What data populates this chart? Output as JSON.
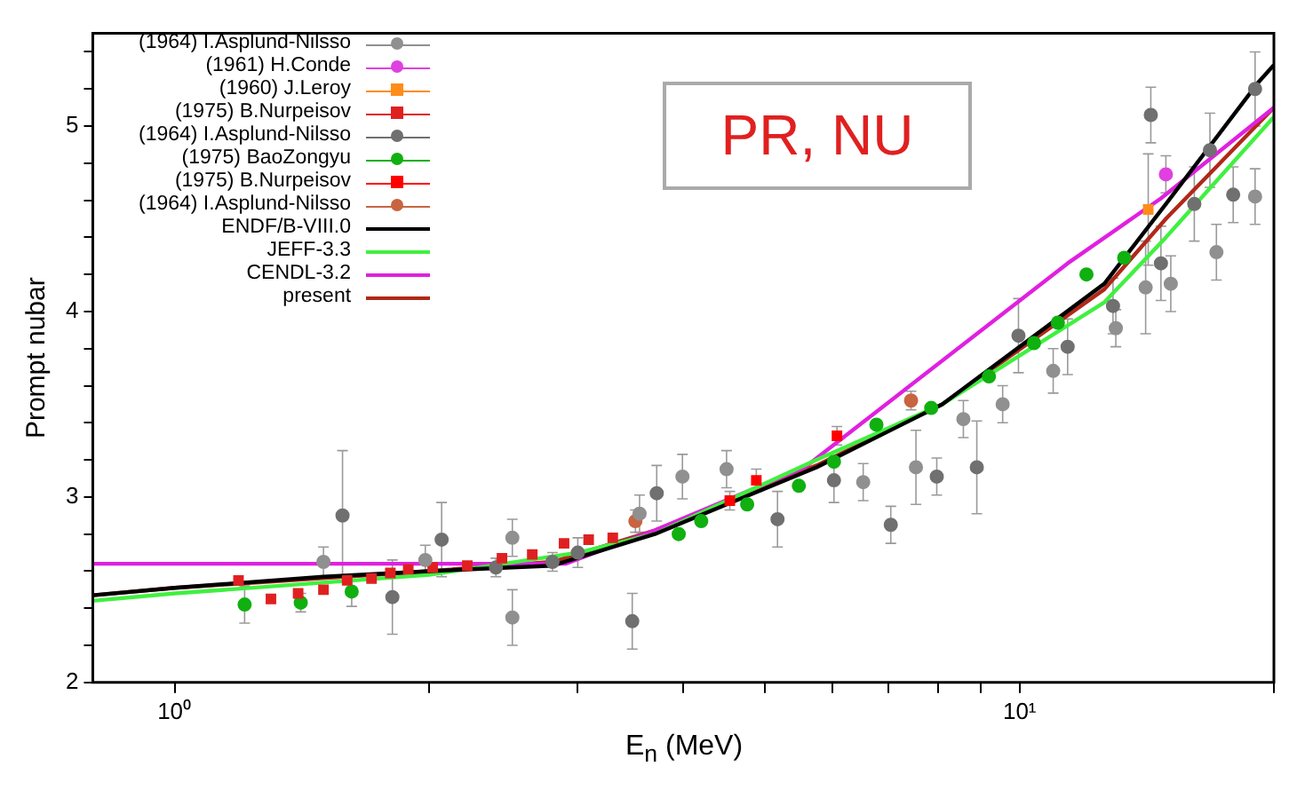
{
  "chart_data": {
    "type": "scatter",
    "xlabel": "E$_{n}$ (MeV)",
    "ylabel": "Prompt nubar",
    "log": "x",
    "legend": "top left",
    "grid": false,
    "annotations": [
      "PR, NU"
    ],
    "xlim": [
      0.8,
      20
    ],
    "ylim": [
      2,
      5.5
    ],
    "xticks": [
      {
        "value": 1,
        "label": "10⁰"
      },
      {
        "value": 2,
        "label": null
      },
      {
        "value": 3,
        "label": null
      },
      {
        "value": 4,
        "label": null
      },
      {
        "value": 5,
        "label": null
      },
      {
        "value": 6,
        "label": null
      },
      {
        "value": 7,
        "label": null
      },
      {
        "value": 8,
        "label": null
      },
      {
        "value": 9,
        "label": null
      },
      {
        "value": 10,
        "label": "10¹"
      },
      {
        "value": 20,
        "label": null
      }
    ],
    "yticks": [
      2,
      {
        "value": 2.2,
        "label": null
      },
      {
        "value": 2.4,
        "label": null
      },
      {
        "value": 2.6,
        "label": null
      },
      {
        "value": 2.8,
        "label": null
      },
      3,
      {
        "value": 3.2,
        "label": null
      },
      {
        "value": 3.4,
        "label": null
      },
      {
        "value": 3.6,
        "label": null
      },
      {
        "value": 3.8,
        "label": null
      },
      4,
      {
        "value": 4.2,
        "label": null
      },
      {
        "value": 4.4,
        "label": null
      },
      {
        "value": 4.6,
        "label": null
      },
      {
        "value": 4.8,
        "label": null
      },
      5,
      {
        "value": 5.2,
        "label": null
      },
      {
        "value": 5.4,
        "label": null
      }
    ],
    "series": [
      {
        "name": "(1964) I.Asplund-Nilsso",
        "type": "scatter",
        "marker": "circle",
        "color": "#909090",
        "x": [
          1.5,
          1.98,
          2.51,
          2.51,
          3.55,
          3.99,
          4.5,
          6.53,
          7.54,
          8.58,
          9.55,
          10.96,
          13.0,
          14.1,
          15.1,
          17.1,
          19.0
        ],
        "values": [
          2.65,
          2.66,
          2.78,
          2.35,
          2.91,
          3.11,
          3.15,
          3.08,
          3.16,
          3.42,
          3.5,
          3.68,
          3.91,
          4.13,
          4.15,
          4.32,
          4.62
        ],
        "errors": [
          0.08,
          0.08,
          0.1,
          0.15,
          0.1,
          0.12,
          0.1,
          0.1,
          0.2,
          0.1,
          0.1,
          0.12,
          0.1,
          0.25,
          0.15,
          0.15,
          0.15
        ]
      },
      {
        "name": "(1961) H.Conde",
        "type": "scatter",
        "marker": "circle",
        "color": "#e040e0",
        "x": [
          14.9
        ],
        "values": [
          4.74
        ],
        "errors": [
          0.1
        ]
      },
      {
        "name": "(1960) J.Leroy",
        "type": "scatter",
        "marker": "square",
        "color": "#ff8c1a",
        "x": [
          14.2
        ],
        "values": [
          4.55
        ],
        "errors": [
          0.3
        ]
      },
      {
        "name": "(1975) B.Nurpeisov",
        "type": "scatter",
        "marker": "square",
        "color": "#e02020",
        "x": [
          1.19,
          1.3,
          1.4,
          1.5,
          1.6,
          1.71,
          1.8,
          1.89,
          2.02,
          2.22,
          2.44,
          2.65,
          2.89,
          3.09,
          3.3
        ],
        "values": [
          2.55,
          2.45,
          2.48,
          2.5,
          2.55,
          2.56,
          2.59,
          2.61,
          2.62,
          2.63,
          2.67,
          2.69,
          2.75,
          2.77,
          2.78
        ]
      },
      {
        "name": "(1964) I.Asplund-Nilsso",
        "type": "scatter",
        "marker": "circle",
        "color": "#707070",
        "x": [
          1.58,
          1.81,
          2.07,
          2.4,
          2.8,
          3.0,
          3.3,
          3.48,
          3.72,
          5.17,
          6.03,
          7.04,
          7.98,
          8.9,
          9.97,
          11.4,
          12.9,
          14.3,
          14.7,
          16.1,
          16.8,
          17.9,
          19.0
        ],
        "values": [
          2.9,
          2.46,
          2.77,
          2.62,
          2.65,
          2.7,
          null,
          2.33,
          3.02,
          2.88,
          3.09,
          2.85,
          3.11,
          3.16,
          3.87,
          3.81,
          4.03,
          5.06,
          4.26,
          4.58,
          4.87,
          4.63,
          5.2
        ],
        "errors": [
          0.35,
          0.2,
          0.2,
          0.05,
          0.05,
          0.08,
          null,
          0.15,
          0.15,
          0.15,
          0.12,
          0.1,
          0.1,
          0.25,
          0.2,
          0.15,
          0.15,
          0.15,
          0.2,
          0.2,
          0.2,
          0.15,
          0.2
        ]
      },
      {
        "name": "(1975) BaoZongyu",
        "type": "scatter",
        "marker": "circle",
        "color": "#10b010",
        "x": [
          1.21,
          1.41,
          1.62,
          3.95,
          4.2,
          4.76,
          5.48,
          6.03,
          6.77,
          7.86,
          9.2,
          10.4,
          11.1,
          12.0,
          13.3
        ],
        "values": [
          2.42,
          2.43,
          2.49,
          2.8,
          2.87,
          2.96,
          3.06,
          3.19,
          3.39,
          3.48,
          3.65,
          3.83,
          3.94,
          4.2,
          4.29
        ],
        "errors": [
          0.1,
          0.05,
          0.08,
          null,
          null,
          null,
          null,
          null,
          null,
          null,
          null,
          null,
          null,
          null,
          null
        ]
      },
      {
        "name": "(1975) B.Nurpeisov",
        "type": "scatter",
        "marker": "square",
        "color": "#ff0000",
        "x": [
          4.54,
          4.88,
          6.08
        ],
        "values": [
          2.98,
          3.09,
          3.33
        ],
        "errors": [
          0.05,
          0.06,
          0.05
        ]
      },
      {
        "name": "(1964) I.Asplund-Nilsso",
        "type": "scatter",
        "marker": "circle",
        "color": "#c86440",
        "x": [
          3.51,
          7.44
        ],
        "values": [
          2.87,
          3.52
        ],
        "errors": [
          0.06,
          0.05
        ]
      },
      {
        "name": "ENDF/B-VIII.0",
        "type": "line",
        "marker": "none",
        "color": "#000000",
        "x": [
          0.8,
          1,
          1.5,
          2,
          2.8,
          3.7,
          5.75,
          8.1,
          12.6,
          14.9,
          19.2,
          20
        ],
        "values": [
          2.47,
          2.51,
          2.57,
          2.6,
          2.63,
          2.8,
          3.16,
          3.5,
          4.15,
          4.58,
          5.24,
          5.33
        ]
      },
      {
        "name": "JEFF-3.3",
        "type": "line",
        "marker": "none",
        "color": "#40f040",
        "x": [
          0.8,
          1,
          2,
          3,
          3.7,
          5.75,
          8.1,
          12.6,
          14.9,
          20
        ],
        "values": [
          2.44,
          2.48,
          2.58,
          2.7,
          2.8,
          3.2,
          3.5,
          4.05,
          4.4,
          5.05
        ]
      },
      {
        "name": "CENDL-3.2",
        "type": "line",
        "marker": "none",
        "color": "#e020e0",
        "x": [
          0.8,
          2.9,
          3.7,
          5.57,
          11.4,
          14.7,
          20
        ],
        "values": [
          2.64,
          2.64,
          2.82,
          3.16,
          4.26,
          4.61,
          5.1
        ]
      },
      {
        "name": "present",
        "type": "line",
        "marker": "none",
        "color": "#b02818",
        "x": [
          0.8,
          1,
          2,
          2.8,
          3.7,
          5.75,
          8.1,
          12.6,
          14.9,
          20
        ],
        "values": [
          2.47,
          2.51,
          2.6,
          2.65,
          2.82,
          3.17,
          3.5,
          4.12,
          4.5,
          5.1
        ]
      }
    ]
  }
}
